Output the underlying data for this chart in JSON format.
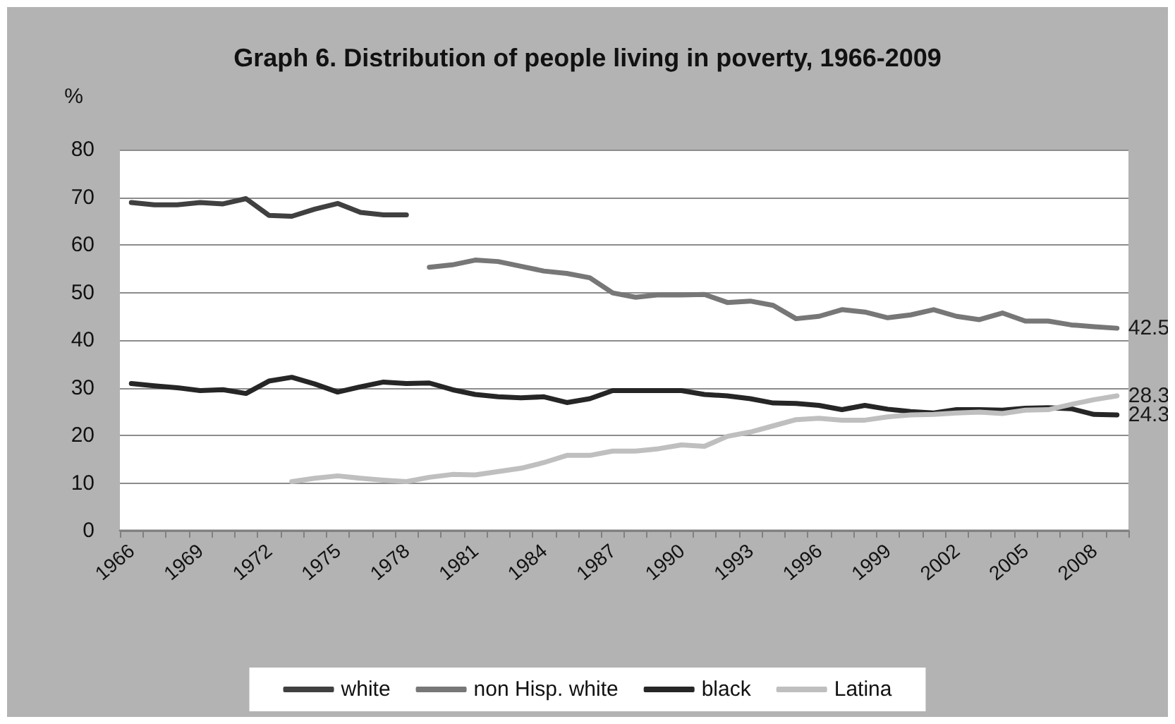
{
  "chart_data": {
    "type": "line",
    "title": "Graph 6. Distribution of people living in poverty, 1966-2009",
    "ylabel": "%",
    "categories": [
      "1966",
      null,
      null,
      "1969",
      null,
      null,
      "1972",
      null,
      null,
      "1975",
      null,
      null,
      "1978",
      null,
      null,
      "1981",
      null,
      null,
      "1984",
      null,
      null,
      "1987",
      null,
      null,
      "1990",
      null,
      null,
      "1993",
      null,
      null,
      "1996",
      null,
      null,
      "1999",
      null,
      null,
      "2002",
      null,
      null,
      "2005",
      null,
      null,
      "2008",
      null
    ],
    "series": [
      {
        "name": "white",
        "color": "#404040",
        "values": [
          68.9,
          68.4,
          68.4,
          68.9,
          68.6,
          69.7,
          66.2,
          66.0,
          67.5,
          68.7,
          66.8,
          66.3,
          66.3,
          null,
          null,
          null,
          null,
          null,
          null,
          null,
          null,
          null,
          null,
          null,
          null,
          null,
          null,
          null,
          null,
          null,
          null,
          null,
          null,
          null,
          null,
          null,
          null,
          null,
          null,
          null,
          null,
          null,
          null,
          null
        ]
      },
      {
        "name": "non Hisp. white",
        "color": "#777777",
        "values": [
          null,
          null,
          null,
          null,
          null,
          null,
          null,
          null,
          null,
          null,
          null,
          null,
          null,
          55.3,
          55.8,
          56.8,
          56.5,
          55.5,
          54.5,
          54.0,
          53.1,
          49.9,
          49.0,
          49.5,
          49.5,
          49.6,
          47.9,
          48.2,
          47.3,
          44.5,
          45.0,
          46.4,
          45.9,
          44.7,
          45.3,
          46.4,
          45.0,
          44.3,
          45.7,
          44.0,
          44.0,
          43.2,
          42.8,
          42.5
        ],
        "value_labels": [
          null,
          null,
          null,
          null,
          null,
          null,
          null,
          null,
          null,
          null,
          null,
          null,
          null,
          null,
          null,
          null,
          null,
          null,
          null,
          null,
          null,
          null,
          null,
          null,
          null,
          null,
          null,
          null,
          null,
          null,
          null,
          null,
          null,
          null,
          null,
          null,
          null,
          null,
          null,
          null,
          null,
          null,
          null,
          "42.5"
        ]
      },
      {
        "name": "black",
        "color": "#262626",
        "values": [
          30.9,
          30.4,
          30.0,
          29.4,
          29.6,
          28.8,
          31.4,
          32.2,
          30.8,
          29.1,
          30.2,
          31.2,
          30.9,
          31.0,
          29.6,
          28.6,
          28.1,
          27.9,
          28.1,
          26.9,
          27.7,
          29.4,
          29.4,
          29.4,
          29.4,
          28.6,
          28.3,
          27.7,
          26.8,
          26.7,
          26.3,
          25.4,
          26.3,
          25.5,
          25.0,
          24.7,
          25.4,
          25.4,
          25.3,
          25.7,
          25.8,
          25.6,
          24.4,
          24.3
        ],
        "value_labels": [
          null,
          null,
          null,
          null,
          null,
          null,
          null,
          null,
          null,
          null,
          null,
          null,
          null,
          null,
          null,
          null,
          null,
          null,
          null,
          null,
          null,
          null,
          null,
          null,
          null,
          null,
          null,
          null,
          null,
          null,
          null,
          null,
          null,
          null,
          null,
          null,
          null,
          null,
          null,
          null,
          null,
          null,
          null,
          "24.3"
        ]
      },
      {
        "name": "Latina",
        "color": "#bfbfbf",
        "values": [
          null,
          null,
          null,
          null,
          null,
          null,
          null,
          10.3,
          11.0,
          11.5,
          11.0,
          10.6,
          10.3,
          11.2,
          11.8,
          11.7,
          12.4,
          13.1,
          14.3,
          15.8,
          15.8,
          16.7,
          16.7,
          17.2,
          18.0,
          17.7,
          19.8,
          20.7,
          22.0,
          23.3,
          23.6,
          23.2,
          23.2,
          23.9,
          24.3,
          24.4,
          24.7,
          24.9,
          24.6,
          25.3,
          25.4,
          26.5,
          27.5,
          28.3
        ],
        "value_labels": [
          null,
          null,
          null,
          null,
          null,
          null,
          null,
          null,
          null,
          null,
          null,
          null,
          null,
          null,
          null,
          null,
          null,
          null,
          null,
          null,
          null,
          null,
          null,
          null,
          null,
          null,
          null,
          null,
          null,
          null,
          null,
          null,
          null,
          null,
          null,
          null,
          null,
          null,
          null,
          null,
          null,
          null,
          null,
          "28.3"
        ]
      }
    ],
    "ylim": [
      0,
      80
    ],
    "yticks": [
      0,
      10,
      20,
      30,
      40,
      50,
      60,
      70,
      80
    ],
    "grid": "y",
    "legend": "bottom",
    "marker": "none",
    "line_style": "solid"
  }
}
